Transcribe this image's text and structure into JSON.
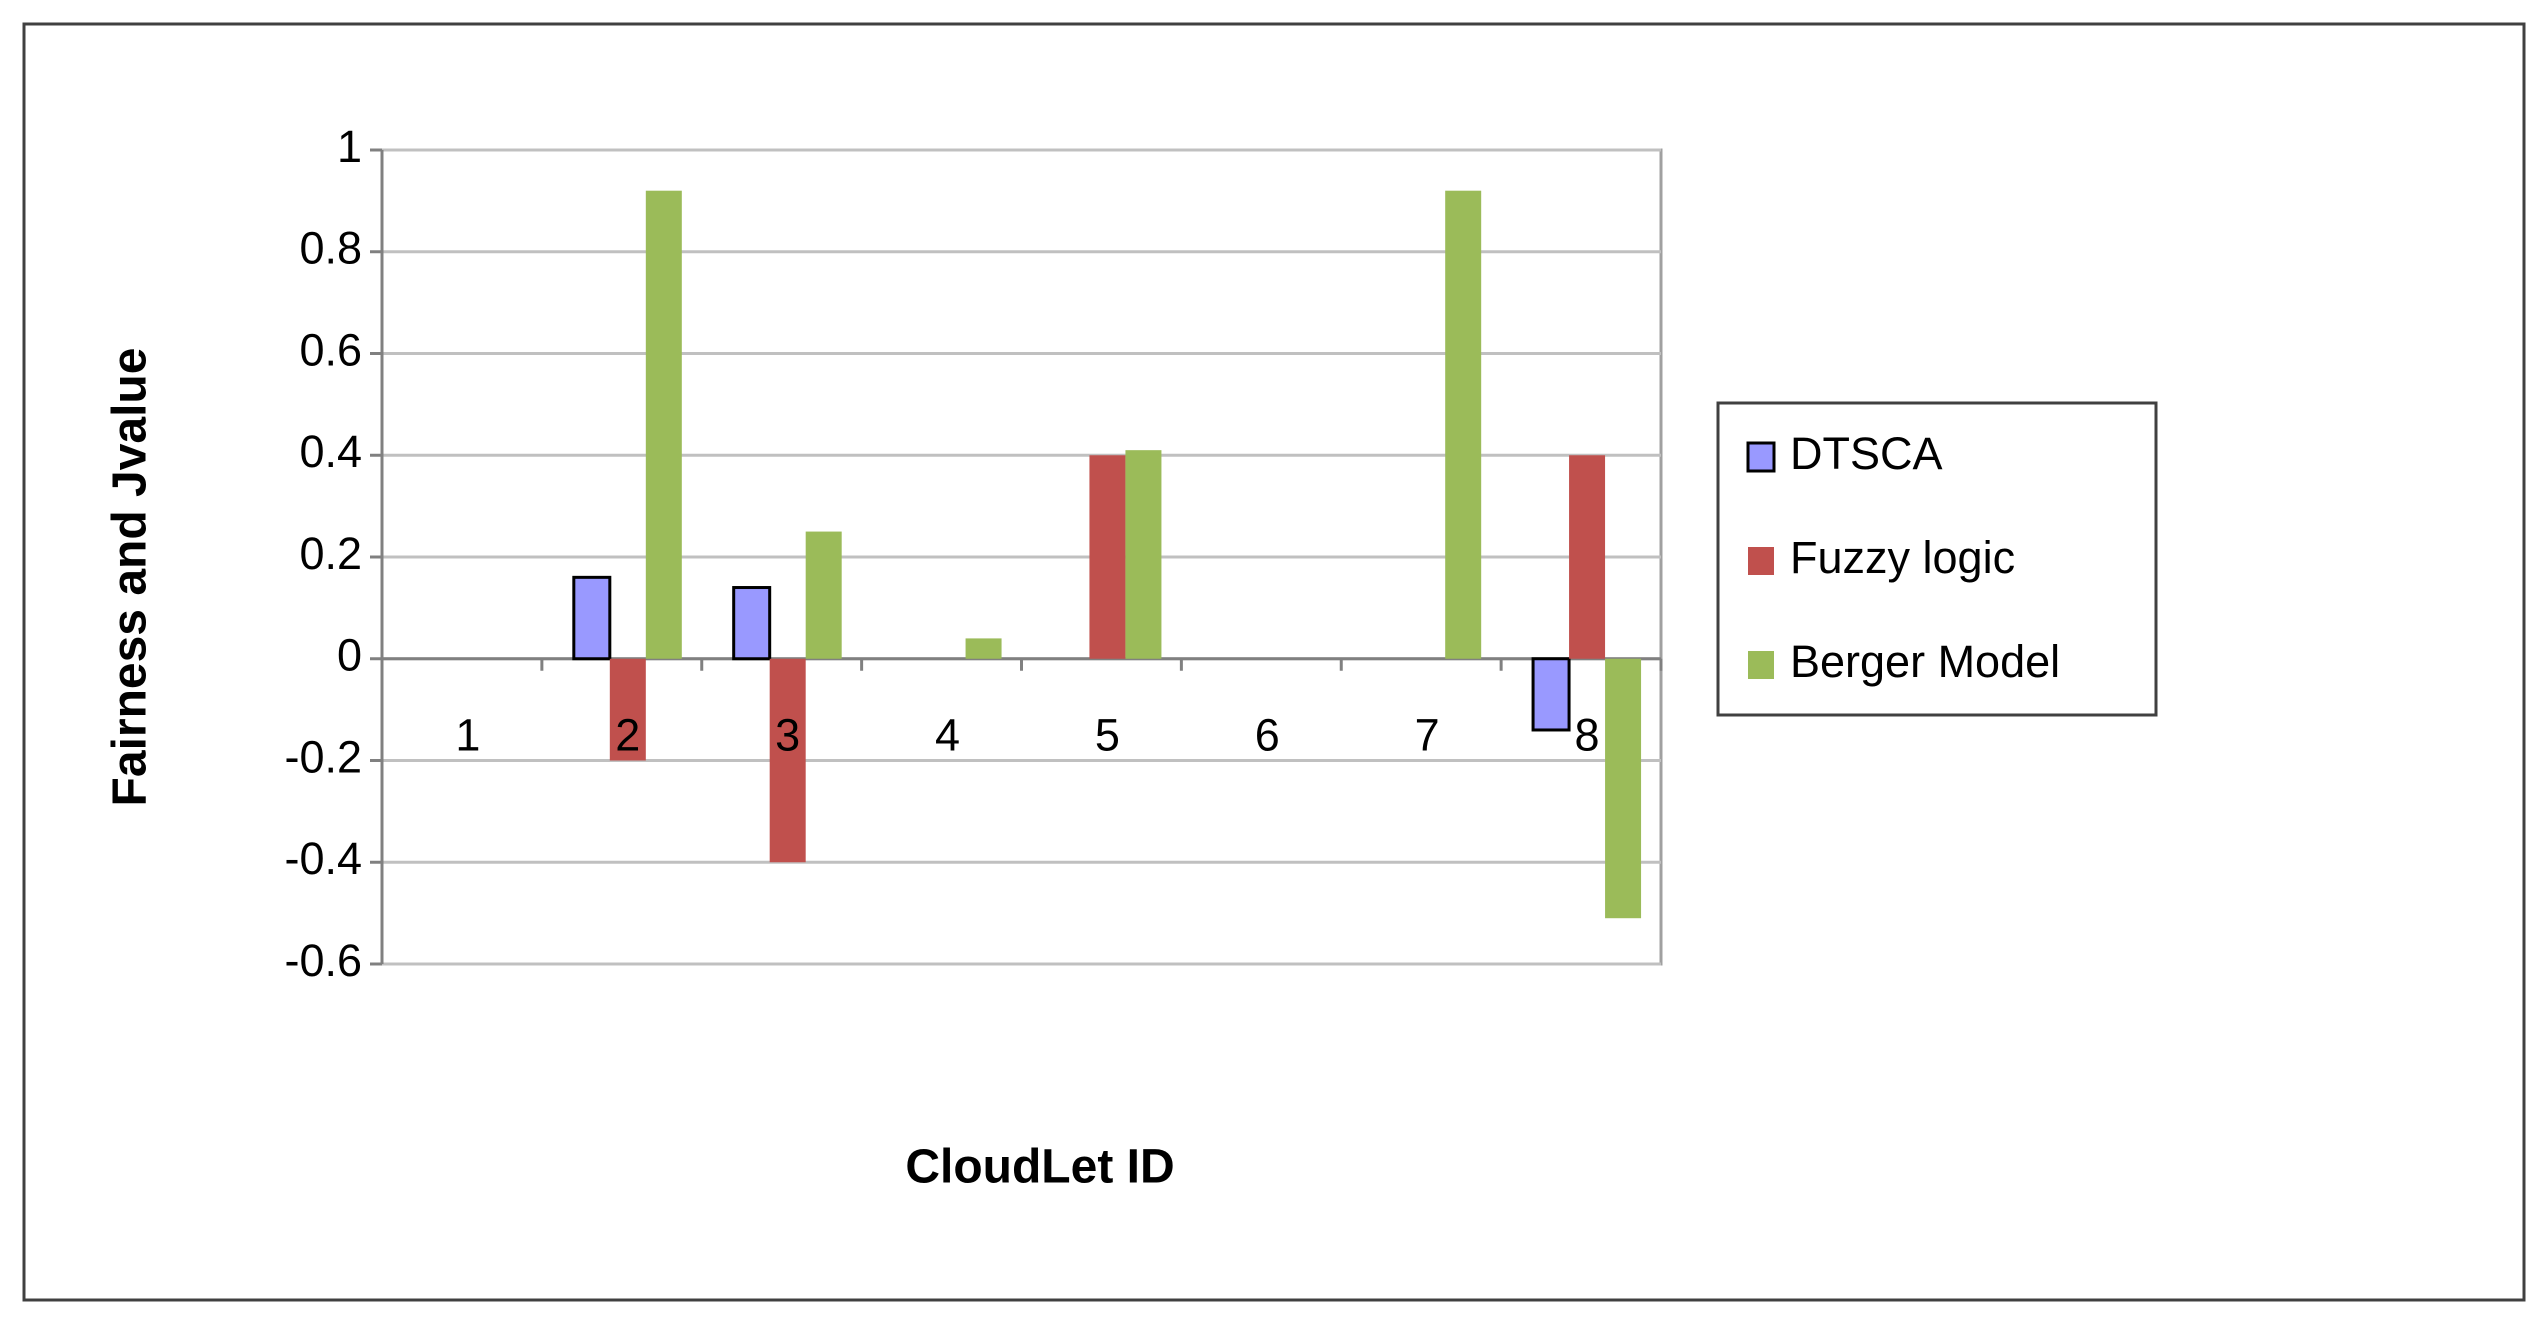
{
  "chart_data": {
    "type": "bar",
    "y_label": "Fairness and Jvalue",
    "x_label": "CloudLet ID",
    "categories": [
      "1",
      "2",
      "3",
      "4",
      "5",
      "6",
      "7",
      "8"
    ],
    "series": [
      {
        "name": "DTSCA",
        "color": "#9999ff",
        "values": [
          0,
          0.16,
          0.14,
          0,
          0,
          0,
          0,
          -0.14
        ]
      },
      {
        "name": "Fuzzy logic",
        "color": "#c0504d",
        "values": [
          0,
          -0.2,
          -0.4,
          0,
          0.4,
          0,
          0,
          0.4
        ]
      },
      {
        "name": "Berger Model",
        "color": "#9bbb59",
        "values": [
          0,
          0.92,
          0.25,
          0.04,
          0.41,
          0,
          0.92,
          -0.51
        ]
      }
    ],
    "ylim": [
      -0.6,
      1
    ],
    "yticks": [
      -0.6,
      -0.4,
      -0.2,
      0,
      0.2,
      0.4,
      0.6,
      0.8,
      1
    ],
    "grid": true,
    "legend": "right"
  }
}
